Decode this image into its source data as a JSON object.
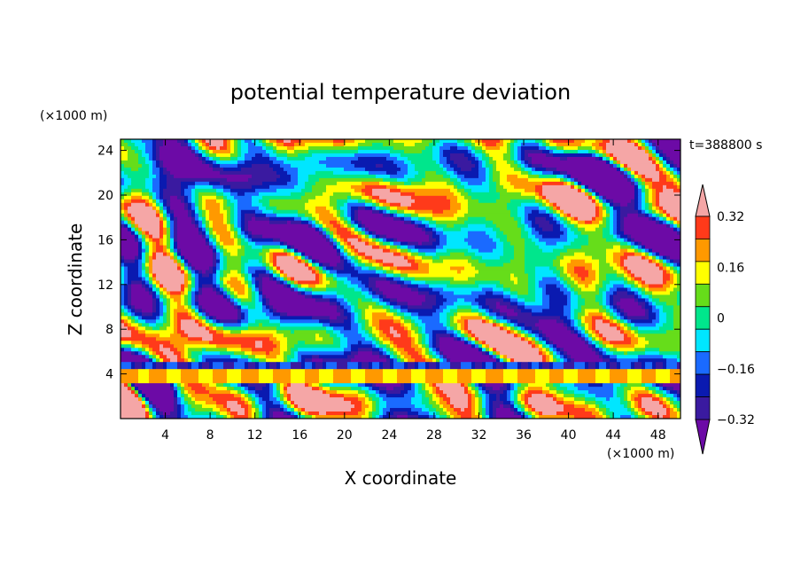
{
  "chart_data": {
    "type": "heatmap",
    "title": "potential temperature deviation",
    "xlabel": "X coordinate",
    "ylabel": "Z coordinate",
    "x_unit": "(×1000 m)",
    "y_unit": "(×1000 m)",
    "time_label": "t=388800 s",
    "xlim": [
      0,
      50
    ],
    "ylim": [
      0,
      25
    ],
    "x_ticks": [
      4,
      8,
      12,
      16,
      20,
      24,
      28,
      32,
      36,
      40,
      44,
      48
    ],
    "y_ticks": [
      4,
      8,
      12,
      16,
      20,
      24
    ],
    "colorbar": {
      "levels": [
        -0.4,
        -0.32,
        -0.24,
        -0.16,
        -0.08,
        0,
        0.08,
        0.16,
        0.24,
        0.32,
        0.4
      ],
      "tick_labels": [
        "0.32",
        "0.16",
        "0",
        "−0.16",
        "−0.32"
      ],
      "tick_values": [
        0.32,
        0.16,
        0,
        -0.16,
        -0.32
      ],
      "colors": [
        "#6c0aa6",
        "#3a1aa0",
        "#0a1ab0",
        "#1a6aff",
        "#00e6ff",
        "#00e68c",
        "#66dd1a",
        "#ffff00",
        "#ff9900",
        "#ff3a1a",
        "#f5a6a6"
      ],
      "extend": "both"
    }
  }
}
